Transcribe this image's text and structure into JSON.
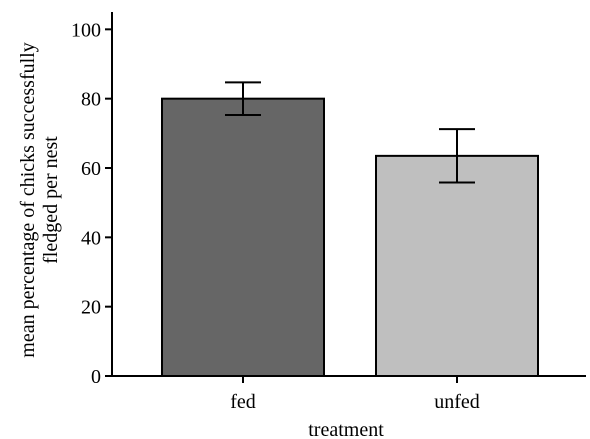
{
  "chart_data": {
    "type": "bar",
    "title": "",
    "xlabel": "treatment",
    "ylabel_lines": [
      "mean percentage of chicks successfully",
      "fledged per nest"
    ],
    "categories": [
      "fed",
      "unfed"
    ],
    "values": [
      80,
      63.5
    ],
    "error_low": [
      75.3,
      55.8
    ],
    "error_high": [
      84.7,
      71.2
    ],
    "bar_colors": [
      "#666666",
      "#bfbfbf"
    ],
    "ylim": [
      0,
      105
    ],
    "yticks": [
      0,
      20,
      40,
      60,
      80,
      100
    ],
    "grid": false,
    "legend": "none"
  }
}
